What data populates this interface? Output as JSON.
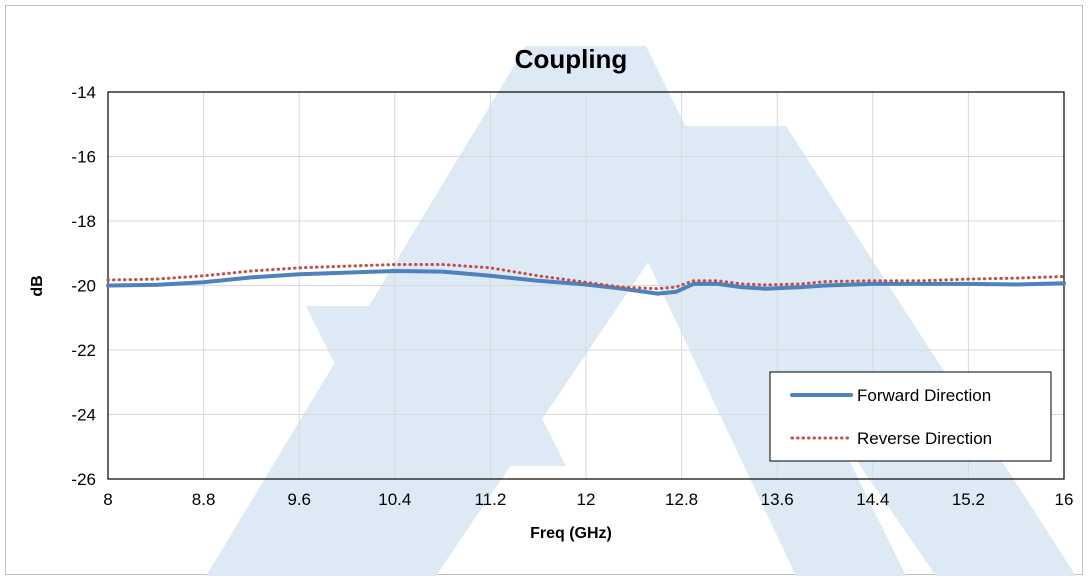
{
  "chart_data": {
    "type": "line",
    "title": "Coupling",
    "xlabel": "Freq (GHz)",
    "ylabel": "dB",
    "xlim": [
      8,
      16
    ],
    "ylim": [
      -26,
      -14
    ],
    "x_ticks": [
      "8",
      "8.8",
      "9.6",
      "10.4",
      "11.2",
      "12",
      "12.8",
      "13.6",
      "14.4",
      "15.2",
      "16"
    ],
    "y_ticks": [
      "-14",
      "-16",
      "-18",
      "-20",
      "-22",
      "-24",
      "-26"
    ],
    "grid": true,
    "legend_position": "bottom-right",
    "series": [
      {
        "name": "Forward Direction",
        "color": "#4f81bd",
        "style": "solid",
        "x": [
          8.0,
          8.4,
          8.8,
          9.2,
          9.6,
          10.0,
          10.4,
          10.8,
          11.2,
          11.6,
          12.0,
          12.3,
          12.6,
          12.75,
          12.9,
          13.1,
          13.3,
          13.5,
          13.8,
          14.0,
          14.4,
          14.8,
          15.2,
          15.6,
          16.0
        ],
        "y": [
          -20.0,
          -19.98,
          -19.9,
          -19.75,
          -19.65,
          -19.6,
          -19.55,
          -19.57,
          -19.7,
          -19.85,
          -19.97,
          -20.1,
          -20.25,
          -20.2,
          -19.95,
          -19.95,
          -20.05,
          -20.1,
          -20.05,
          -20.0,
          -19.95,
          -19.95,
          -19.95,
          -19.97,
          -19.93
        ]
      },
      {
        "name": "Reverse Direction",
        "color": "#c0504d",
        "style": "dotted",
        "x": [
          8.0,
          8.4,
          8.8,
          9.2,
          9.6,
          10.0,
          10.4,
          10.8,
          11.2,
          11.6,
          12.0,
          12.3,
          12.6,
          12.75,
          12.9,
          13.1,
          13.3,
          13.5,
          13.8,
          14.0,
          14.4,
          14.8,
          15.2,
          15.6,
          16.0
        ],
        "y": [
          -19.83,
          -19.8,
          -19.7,
          -19.55,
          -19.45,
          -19.4,
          -19.35,
          -19.35,
          -19.45,
          -19.7,
          -19.9,
          -20.05,
          -20.1,
          -20.05,
          -19.85,
          -19.85,
          -19.95,
          -19.98,
          -19.95,
          -19.88,
          -19.85,
          -19.85,
          -19.8,
          -19.77,
          -19.72
        ]
      }
    ]
  },
  "watermark": {
    "color": "#ddeaf6",
    "icon": "logo-watermark-icon"
  }
}
